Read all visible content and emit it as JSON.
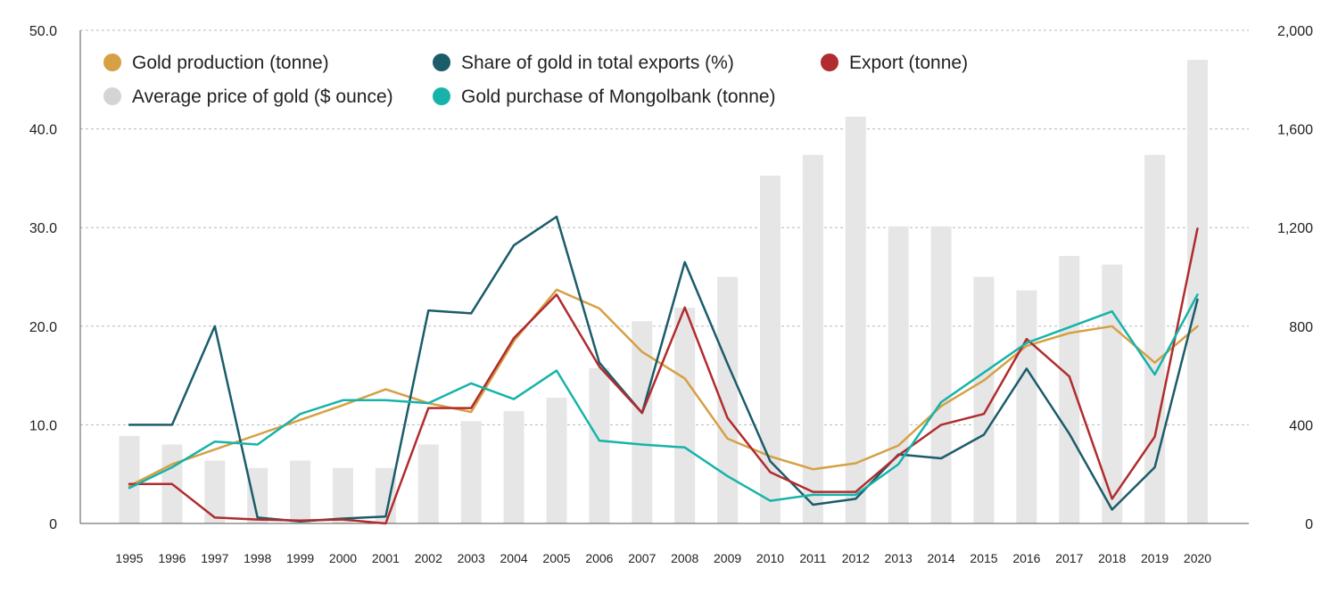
{
  "chart_data": {
    "type": "bar",
    "categories": [
      "1995",
      "1996",
      "1997",
      "1998",
      "1999",
      "2000",
      "2001",
      "2002",
      "2003",
      "2004",
      "2005",
      "2006",
      "2007",
      "2008",
      "2009",
      "2010",
      "2011",
      "2012",
      "2013",
      "2014",
      "2015",
      "2016",
      "2017",
      "2018",
      "2019",
      "2020"
    ],
    "y_left": {
      "ylim": [
        0,
        50
      ],
      "ticks": [
        "0",
        "10.0",
        "20.0",
        "30.0",
        "40.0",
        "50.0"
      ],
      "tick_values": [
        0,
        10,
        20,
        30,
        40,
        50
      ]
    },
    "y_right": {
      "ylim": [
        0,
        2000
      ],
      "ticks": [
        "0",
        "400",
        "800",
        "1,200",
        "1,600",
        "2,000"
      ],
      "tick_values": [
        0,
        400,
        800,
        1200,
        1600,
        2000
      ]
    },
    "grid": true,
    "legend_placement": "top-left",
    "bars": {
      "name": "Average price of gold ($ ounce)",
      "axis": "right",
      "color": "#e6e6e6",
      "values": [
        355,
        320,
        255,
        225,
        255,
        225,
        225,
        320,
        415,
        455,
        510,
        630,
        820,
        875,
        1000,
        1410,
        1495,
        1650,
        1205,
        1205,
        1000,
        945,
        1085,
        1050,
        1495,
        1880
      ]
    },
    "series": [
      {
        "name": "Gold production (tonne)",
        "axis": "left",
        "color": "#d6a044",
        "values": [
          3.8,
          6.0,
          7.5,
          9.0,
          10.5,
          12.0,
          13.6,
          12.2,
          11.3,
          18.5,
          23.7,
          21.8,
          17.4,
          14.7,
          8.6,
          6.8,
          5.5,
          6.1,
          7.9,
          11.9,
          14.5,
          18.0,
          19.3,
          20.0,
          16.3,
          20.0
        ]
      },
      {
        "name": "Share of gold in total exports (%)",
        "axis": "left",
        "color": "#1b5c6b",
        "values": [
          10.0,
          10.0,
          20.0,
          0.6,
          0.2,
          0.5,
          0.7,
          21.6,
          21.3,
          28.2,
          31.1,
          16.3,
          11.2,
          26.5,
          16.2,
          6.3,
          1.9,
          2.5,
          7.0,
          6.6,
          9.0,
          15.7,
          9.1,
          1.4,
          5.7,
          22.7
        ]
      },
      {
        "name": "Export (tonne)",
        "axis": "left",
        "color": "#b02c2e",
        "values": [
          4.0,
          4.0,
          0.6,
          0.4,
          0.3,
          0.4,
          0.0,
          11.7,
          11.7,
          18.8,
          23.2,
          15.9,
          11.2,
          21.9,
          10.7,
          5.2,
          3.2,
          3.2,
          6.9,
          10.0,
          11.1,
          18.7,
          14.9,
          2.5,
          8.8,
          29.9
        ]
      },
      {
        "name": "Gold purchase of Mongolbank (tonne)",
        "axis": "left",
        "color": "#17b3aa",
        "values": [
          3.6,
          5.7,
          8.3,
          8.0,
          11.1,
          12.5,
          12.5,
          12.2,
          14.2,
          12.6,
          15.5,
          8.4,
          8.0,
          7.7,
          4.8,
          2.3,
          2.9,
          2.9,
          6.0,
          12.3,
          15.3,
          18.3,
          19.9,
          21.5,
          15.1,
          23.2
        ]
      }
    ],
    "legend": [
      {
        "label": "Gold production (tonne)",
        "color": "#d6a044"
      },
      {
        "label": "Share of gold in total exports (%)",
        "color": "#1b5c6b"
      },
      {
        "label": "Export (tonne)",
        "color": "#b02c2e"
      },
      {
        "label": "Average price of gold ($ ounce)",
        "color": "#d4d4d4"
      },
      {
        "label": "Gold purchase of Mongolbank (tonne)",
        "color": "#17b3aa"
      }
    ]
  }
}
